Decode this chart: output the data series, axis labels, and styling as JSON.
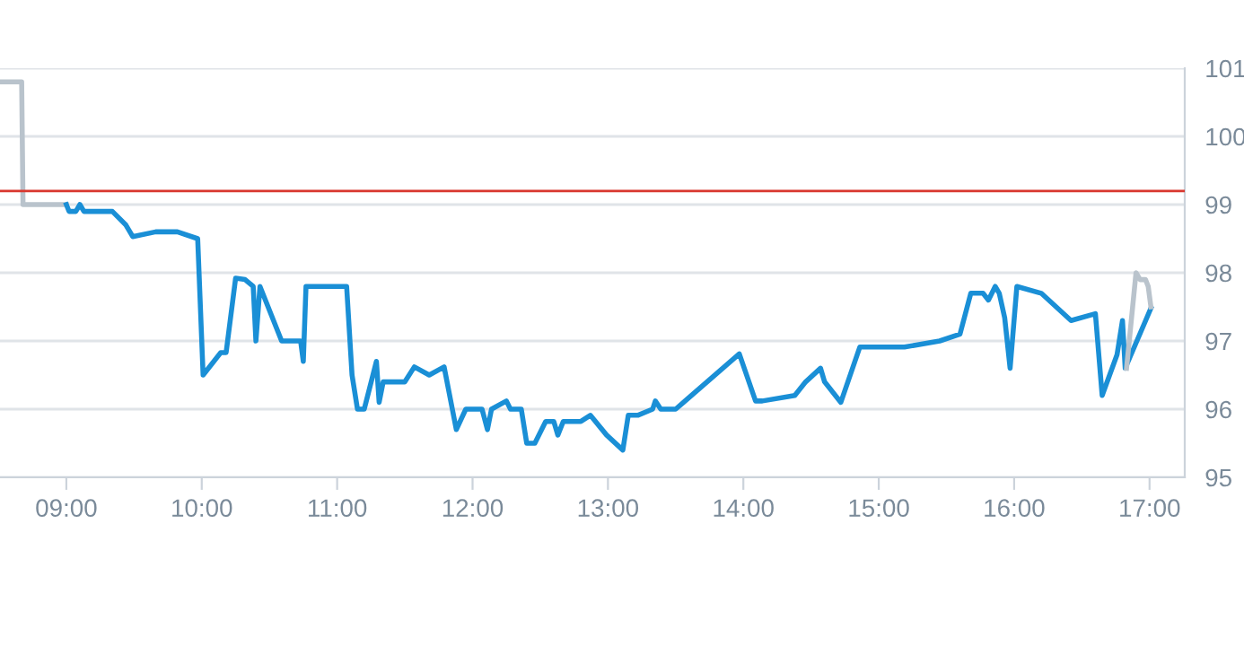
{
  "chart_data": {
    "type": "line",
    "series": [
      {
        "color": "#b9c3cc",
        "x": [
          8.51,
          8.67,
          8.68,
          9.0
        ],
        "values": [
          100.8,
          100.8,
          99.0,
          99.0
        ]
      },
      {
        "color": "#1a8fd6",
        "x": [
          9.0,
          9.02,
          9.07,
          9.1,
          9.13,
          9.34,
          9.44,
          9.49,
          9.66,
          9.82,
          9.97,
          10.01,
          10.14,
          10.18,
          10.25,
          10.32,
          10.38,
          10.4,
          10.43,
          10.59,
          10.73,
          10.75,
          10.77,
          11.07,
          11.11,
          11.15,
          11.2,
          11.29,
          11.31,
          11.34,
          11.5,
          11.57,
          11.68,
          11.79,
          11.88,
          11.95,
          12.07,
          12.11,
          12.14,
          12.25,
          12.28,
          12.36,
          12.4,
          12.46,
          12.54,
          12.6,
          12.63,
          12.67,
          12.8,
          12.87,
          12.99,
          13.11,
          13.15,
          13.22,
          13.33,
          13.35,
          13.39,
          13.5,
          13.97,
          14.09,
          14.14,
          14.38,
          14.46,
          14.57,
          14.6,
          14.72,
          14.86,
          15.19,
          15.45,
          15.6,
          15.68,
          15.77,
          15.81,
          15.86,
          15.89,
          15.93,
          15.97,
          16.02,
          16.2,
          16.42,
          16.6,
          16.65,
          16.76,
          16.8,
          16.82,
          17.01
        ],
        "values": [
          99.0,
          98.9,
          98.9,
          99.0,
          98.9,
          98.9,
          98.7,
          98.53,
          98.6,
          98.6,
          98.5,
          96.5,
          96.83,
          96.83,
          97.92,
          97.9,
          97.8,
          97.0,
          97.8,
          97.0,
          97.0,
          96.7,
          97.8,
          97.8,
          96.5,
          96.0,
          96.0,
          96.7,
          96.1,
          96.4,
          96.4,
          96.62,
          96.5,
          96.62,
          95.7,
          96.0,
          96.0,
          95.7,
          96.0,
          96.12,
          96.0,
          96.0,
          95.5,
          95.5,
          95.82,
          95.82,
          95.62,
          95.82,
          95.82,
          95.91,
          95.62,
          95.4,
          95.91,
          95.91,
          96.0,
          96.12,
          96.0,
          96.0,
          96.81,
          96.12,
          96.12,
          96.2,
          96.4,
          96.6,
          96.4,
          96.1,
          96.91,
          96.91,
          97.0,
          97.1,
          97.7,
          97.7,
          97.6,
          97.8,
          97.7,
          97.34,
          96.6,
          97.8,
          97.7,
          97.3,
          97.4,
          96.2,
          96.8,
          97.3,
          96.6,
          97.48
        ]
      },
      {
        "color": "#b9c3cc",
        "x": [
          16.83,
          16.9,
          16.93,
          16.97,
          16.99,
          17.01
        ],
        "values": [
          96.6,
          98.0,
          97.9,
          97.9,
          97.8,
          97.5
        ]
      }
    ],
    "xlim": [
      8.51,
      17.26
    ],
    "xticks": [
      {
        "value": 9,
        "label": "09:00"
      },
      {
        "value": 10,
        "label": "10:00"
      },
      {
        "value": 11,
        "label": "11:00"
      },
      {
        "value": 12,
        "label": "12:00"
      },
      {
        "value": 13,
        "label": "13:00"
      },
      {
        "value": 14,
        "label": "14:00"
      },
      {
        "value": 15,
        "label": "15:00"
      },
      {
        "value": 16,
        "label": "16:00"
      },
      {
        "value": 17,
        "label": "17:00"
      }
    ],
    "ylim": [
      95,
      101
    ],
    "yticks": [
      95,
      96,
      97,
      98,
      99,
      100,
      101
    ],
    "grid": "y",
    "legend": false,
    "ref_lines": [
      {
        "axis": "y",
        "value": 99.2,
        "color": "#d9382f"
      }
    ]
  }
}
